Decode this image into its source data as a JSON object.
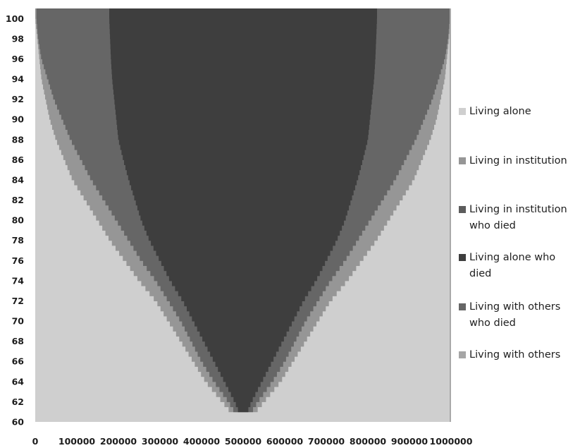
{
  "chart_data": {
    "type": "area",
    "title": "",
    "xlabel": "",
    "ylabel": "",
    "xlim": [
      0,
      1000000
    ],
    "ylim": [
      60,
      101
    ],
    "x_ticks": [
      "0",
      "100000",
      "200000",
      "300000",
      "400000",
      "500000",
      "600000",
      "700000",
      "800000",
      "900000",
      "1000000"
    ],
    "y_ticks": [
      "60",
      "62",
      "64",
      "66",
      "68",
      "70",
      "72",
      "74",
      "76",
      "78",
      "80",
      "82",
      "84",
      "86",
      "88",
      "90",
      "92",
      "94",
      "96",
      "98",
      "100"
    ],
    "grid": false,
    "legend_position": "right",
    "legend": [
      {
        "name": "Living alone",
        "color": "#cfcfcf"
      },
      {
        "name": "Living in institution",
        "color": "#969696"
      },
      {
        "name": "Living in institution\nwho died",
        "color": "#5c5c5c"
      },
      {
        "name": "Living alone  who\ndied",
        "color": "#3e3e3e"
      },
      {
        "name": "Living with others\nwho died",
        "color": "#666666"
      },
      {
        "name": "Living with others",
        "color": "#a6a6a6"
      }
    ],
    "boundary_note": "x-boundaries between the bands at each age (left half; mirrored about 500000)",
    "boundaries": {
      "age": [
        61,
        62,
        64,
        66,
        68,
        70,
        72,
        74,
        76,
        78,
        80,
        82,
        84,
        86,
        88,
        90,
        92,
        94,
        96,
        98,
        100
      ],
      "light_edge": [
        470000,
        450000,
        410000,
        380000,
        350000,
        320000,
        290000,
        250000,
        215000,
        180000,
        150000,
        120000,
        90000,
        70000,
        50000,
        35000,
        25000,
        15000,
        10000,
        5000,
        0
      ],
      "mid_edge": [
        480000,
        465000,
        430000,
        400000,
        375000,
        350000,
        320000,
        290000,
        255000,
        225000,
        195000,
        165000,
        135000,
        110000,
        85000,
        65000,
        45000,
        30000,
        15000,
        7000,
        3000
      ],
      "dark_edge": [
        490000,
        480000,
        455000,
        430000,
        405000,
        380000,
        355000,
        325000,
        300000,
        275000,
        255000,
        240000,
        225000,
        212000,
        200000,
        195000,
        190000,
        185000,
        182000,
        180000,
        178000
      ]
    }
  }
}
